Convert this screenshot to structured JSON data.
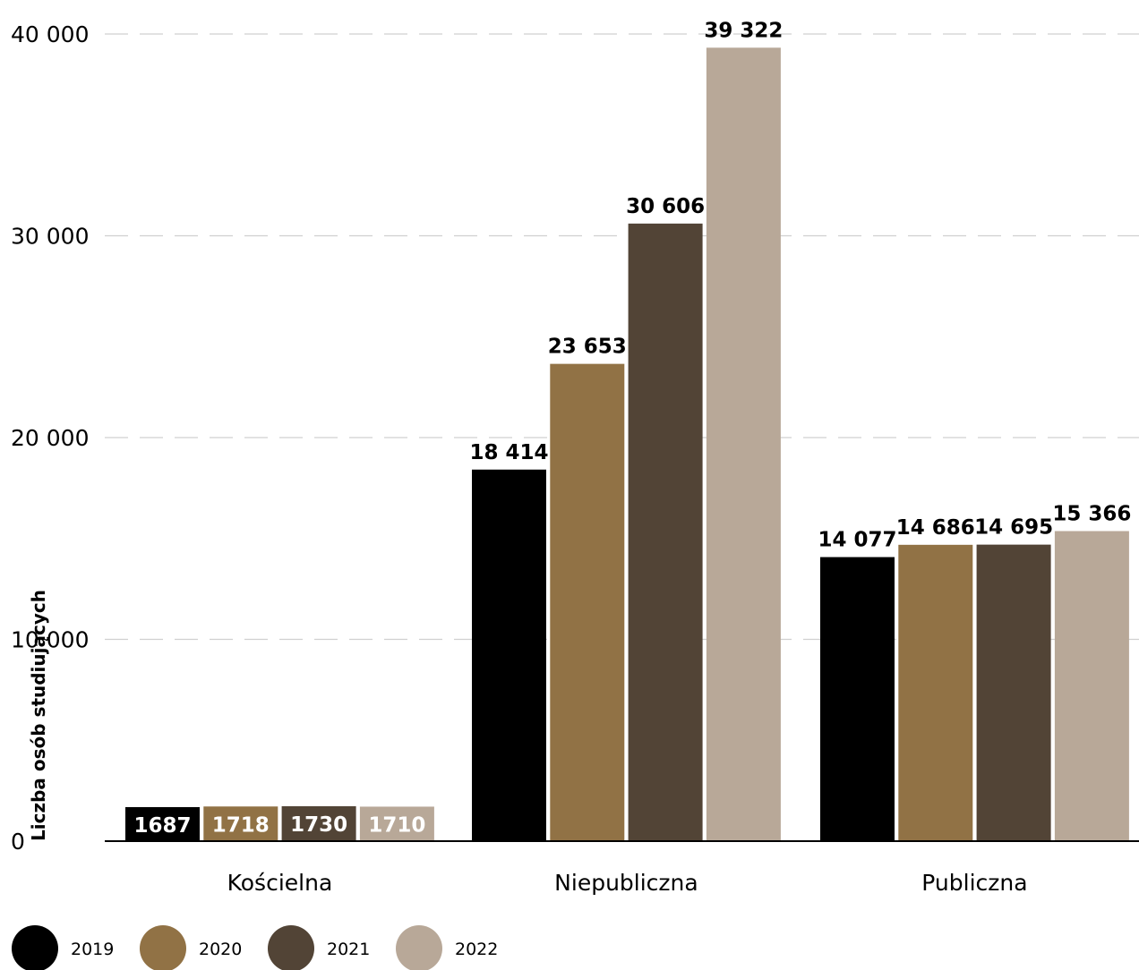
{
  "chart_data": {
    "type": "bar",
    "title": "",
    "xlabel": "",
    "ylabel": "Liczba osób studiujących",
    "categories": [
      "Kościelna",
      "Niepubliczna",
      "Publiczna"
    ],
    "series": [
      {
        "name": "2019",
        "color": "#000000",
        "values": [
          1687,
          18414,
          14077
        ],
        "labels": [
          "1687",
          "18 414",
          "14 077"
        ]
      },
      {
        "name": "2020",
        "color": "#917245",
        "values": [
          1718,
          23653,
          14686
        ],
        "labels": [
          "1718",
          "23 653",
          "14 686"
        ]
      },
      {
        "name": "2021",
        "color": "#524436",
        "values": [
          1730,
          30606,
          14695
        ],
        "labels": [
          "1730",
          "30 606",
          "14 695"
        ]
      },
      {
        "name": "2022",
        "color": "#b8a898",
        "values": [
          1710,
          39322,
          15366
        ],
        "labels": [
          "1710",
          "39 322",
          "15 366"
        ]
      }
    ],
    "yticks": [
      0,
      10000,
      20000,
      30000,
      40000
    ],
    "ytick_labels": [
      "0",
      "10 000",
      "20 000",
      "30 000",
      "40 000"
    ],
    "ylim": [
      0,
      40000
    ],
    "grid": true,
    "legend_position": "bottom-left"
  }
}
